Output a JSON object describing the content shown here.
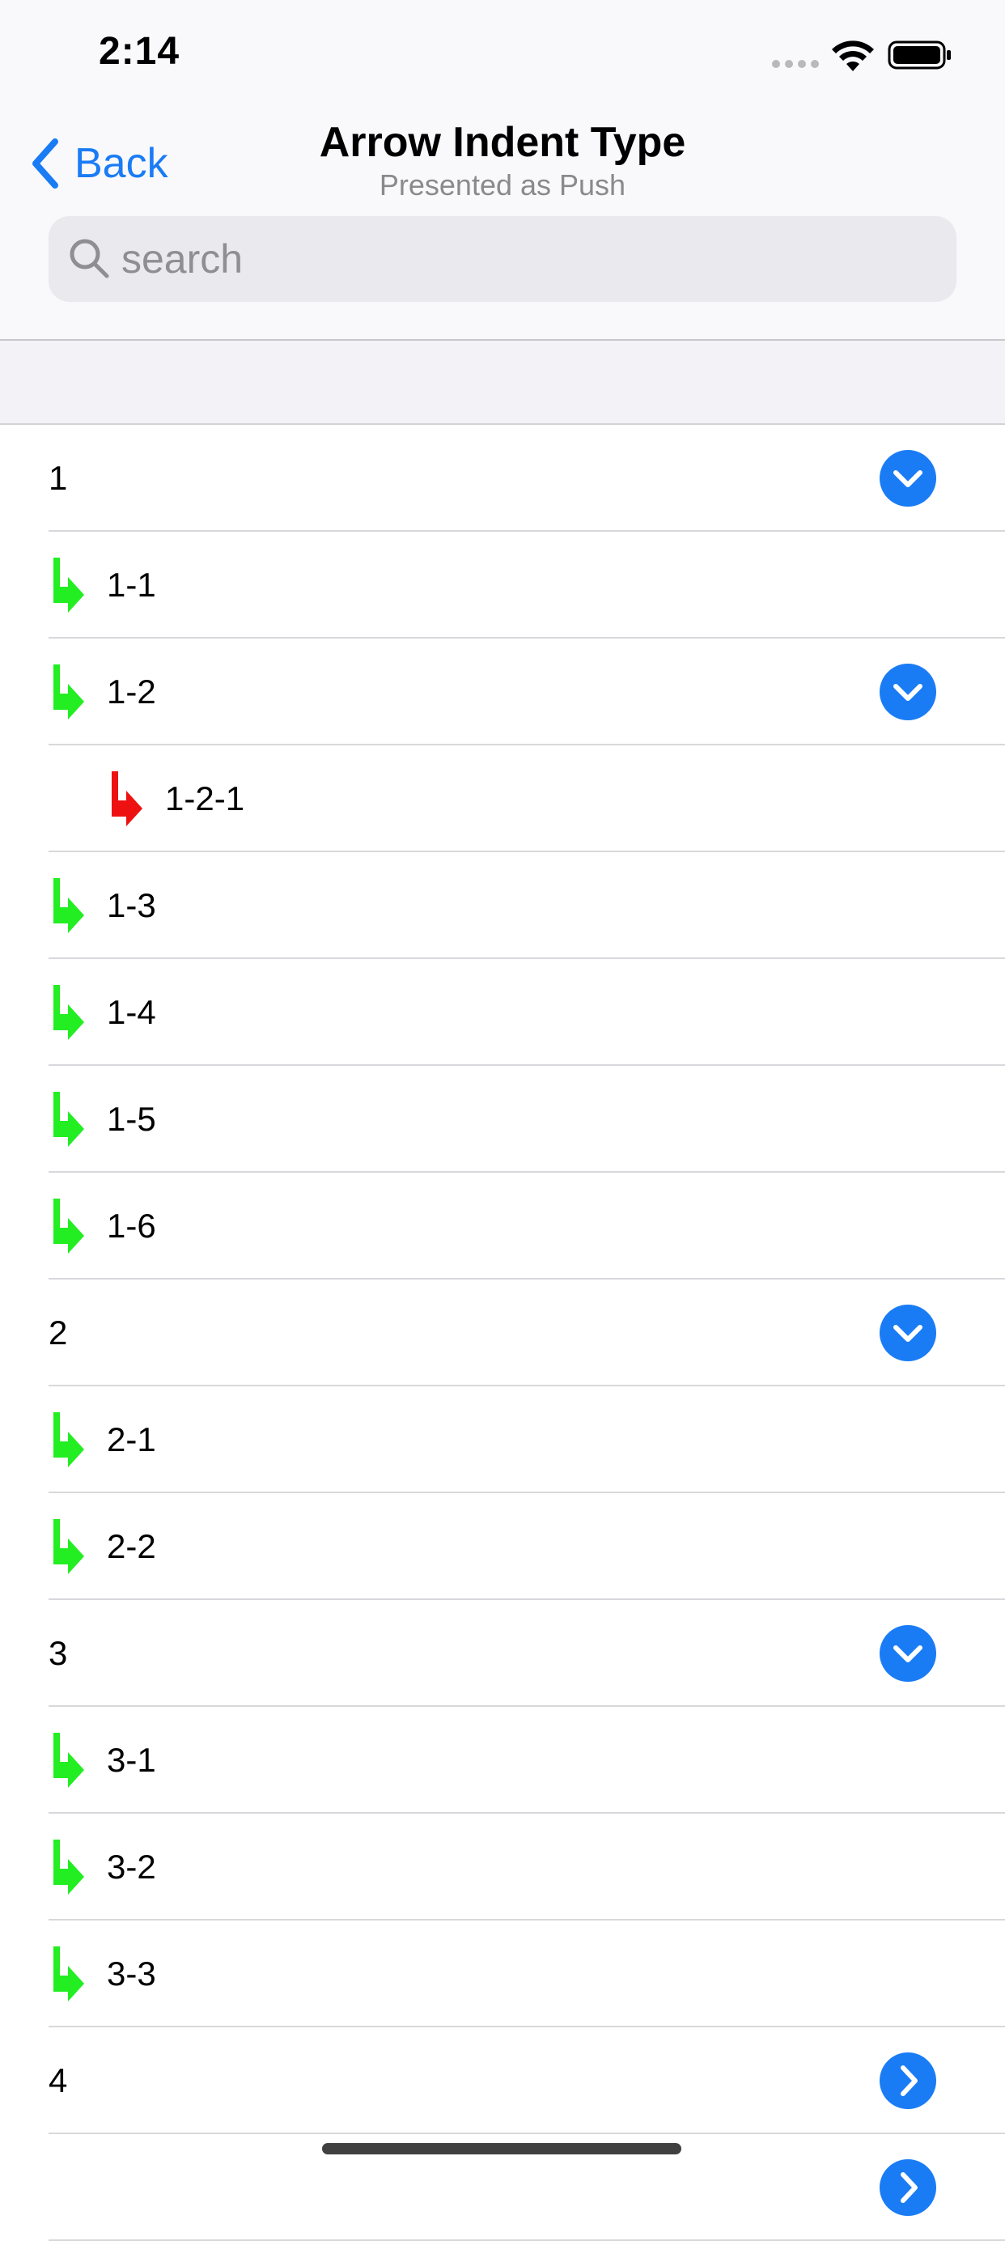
{
  "status_bar": {
    "time": "2:14",
    "signal_icon": "signal-dots-icon",
    "wifi_icon": "wifi-icon",
    "battery_icon": "battery-icon"
  },
  "nav": {
    "back_label": "Back",
    "title": "Arrow Indent Type",
    "subtitle": "Presented as Push"
  },
  "search": {
    "placeholder": "search"
  },
  "colors": {
    "accent": "#1a7cf5",
    "level1_arrow": "#22ee22",
    "level2_arrow": "#ee1111"
  },
  "rows": [
    {
      "label": "1",
      "level": 0,
      "control": "chevron-down"
    },
    {
      "label": "1-1",
      "level": 1,
      "control": "none"
    },
    {
      "label": "1-2",
      "level": 1,
      "control": "chevron-down"
    },
    {
      "label": "1-2-1",
      "level": 2,
      "control": "none"
    },
    {
      "label": "1-3",
      "level": 1,
      "control": "none"
    },
    {
      "label": "1-4",
      "level": 1,
      "control": "none"
    },
    {
      "label": "1-5",
      "level": 1,
      "control": "none"
    },
    {
      "label": "1-6",
      "level": 1,
      "control": "none"
    },
    {
      "label": "2",
      "level": 0,
      "control": "chevron-down"
    },
    {
      "label": "2-1",
      "level": 1,
      "control": "none"
    },
    {
      "label": "2-2",
      "level": 1,
      "control": "none"
    },
    {
      "label": "3",
      "level": 0,
      "control": "chevron-down"
    },
    {
      "label": "3-1",
      "level": 1,
      "control": "none"
    },
    {
      "label": "3-2",
      "level": 1,
      "control": "none"
    },
    {
      "label": "3-3",
      "level": 1,
      "control": "none"
    },
    {
      "label": "4",
      "level": 0,
      "control": "chevron-right"
    },
    {
      "label": "",
      "level": 0,
      "control": "chevron-right"
    }
  ]
}
